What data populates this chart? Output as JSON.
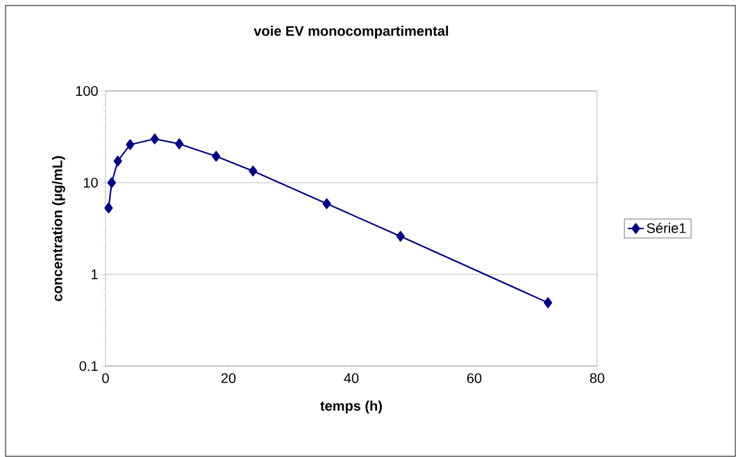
{
  "chart_data": {
    "type": "line",
    "title": "voie EV monocompartimental",
    "xlabel": "temps (h)",
    "ylabel": "concentration (µg/mL)",
    "x": [
      0.5,
      1,
      2,
      4,
      8,
      12,
      18,
      24,
      36,
      48,
      72
    ],
    "series": [
      {
        "name": "Série1",
        "color": "#000080",
        "values": [
          5.3,
          10,
          17.2,
          26,
          30,
          26.5,
          19.4,
          13.4,
          5.9,
          2.6,
          0.49
        ]
      }
    ],
    "xlim": [
      0,
      80
    ],
    "ylim": [
      0.1,
      100
    ],
    "xticks": [
      0,
      20,
      40,
      60,
      80
    ],
    "yticks": [
      0.1,
      1,
      10,
      100
    ],
    "log": "y",
    "grid": "y",
    "legend": "right",
    "marker": "diamond",
    "line_style": "solid"
  }
}
